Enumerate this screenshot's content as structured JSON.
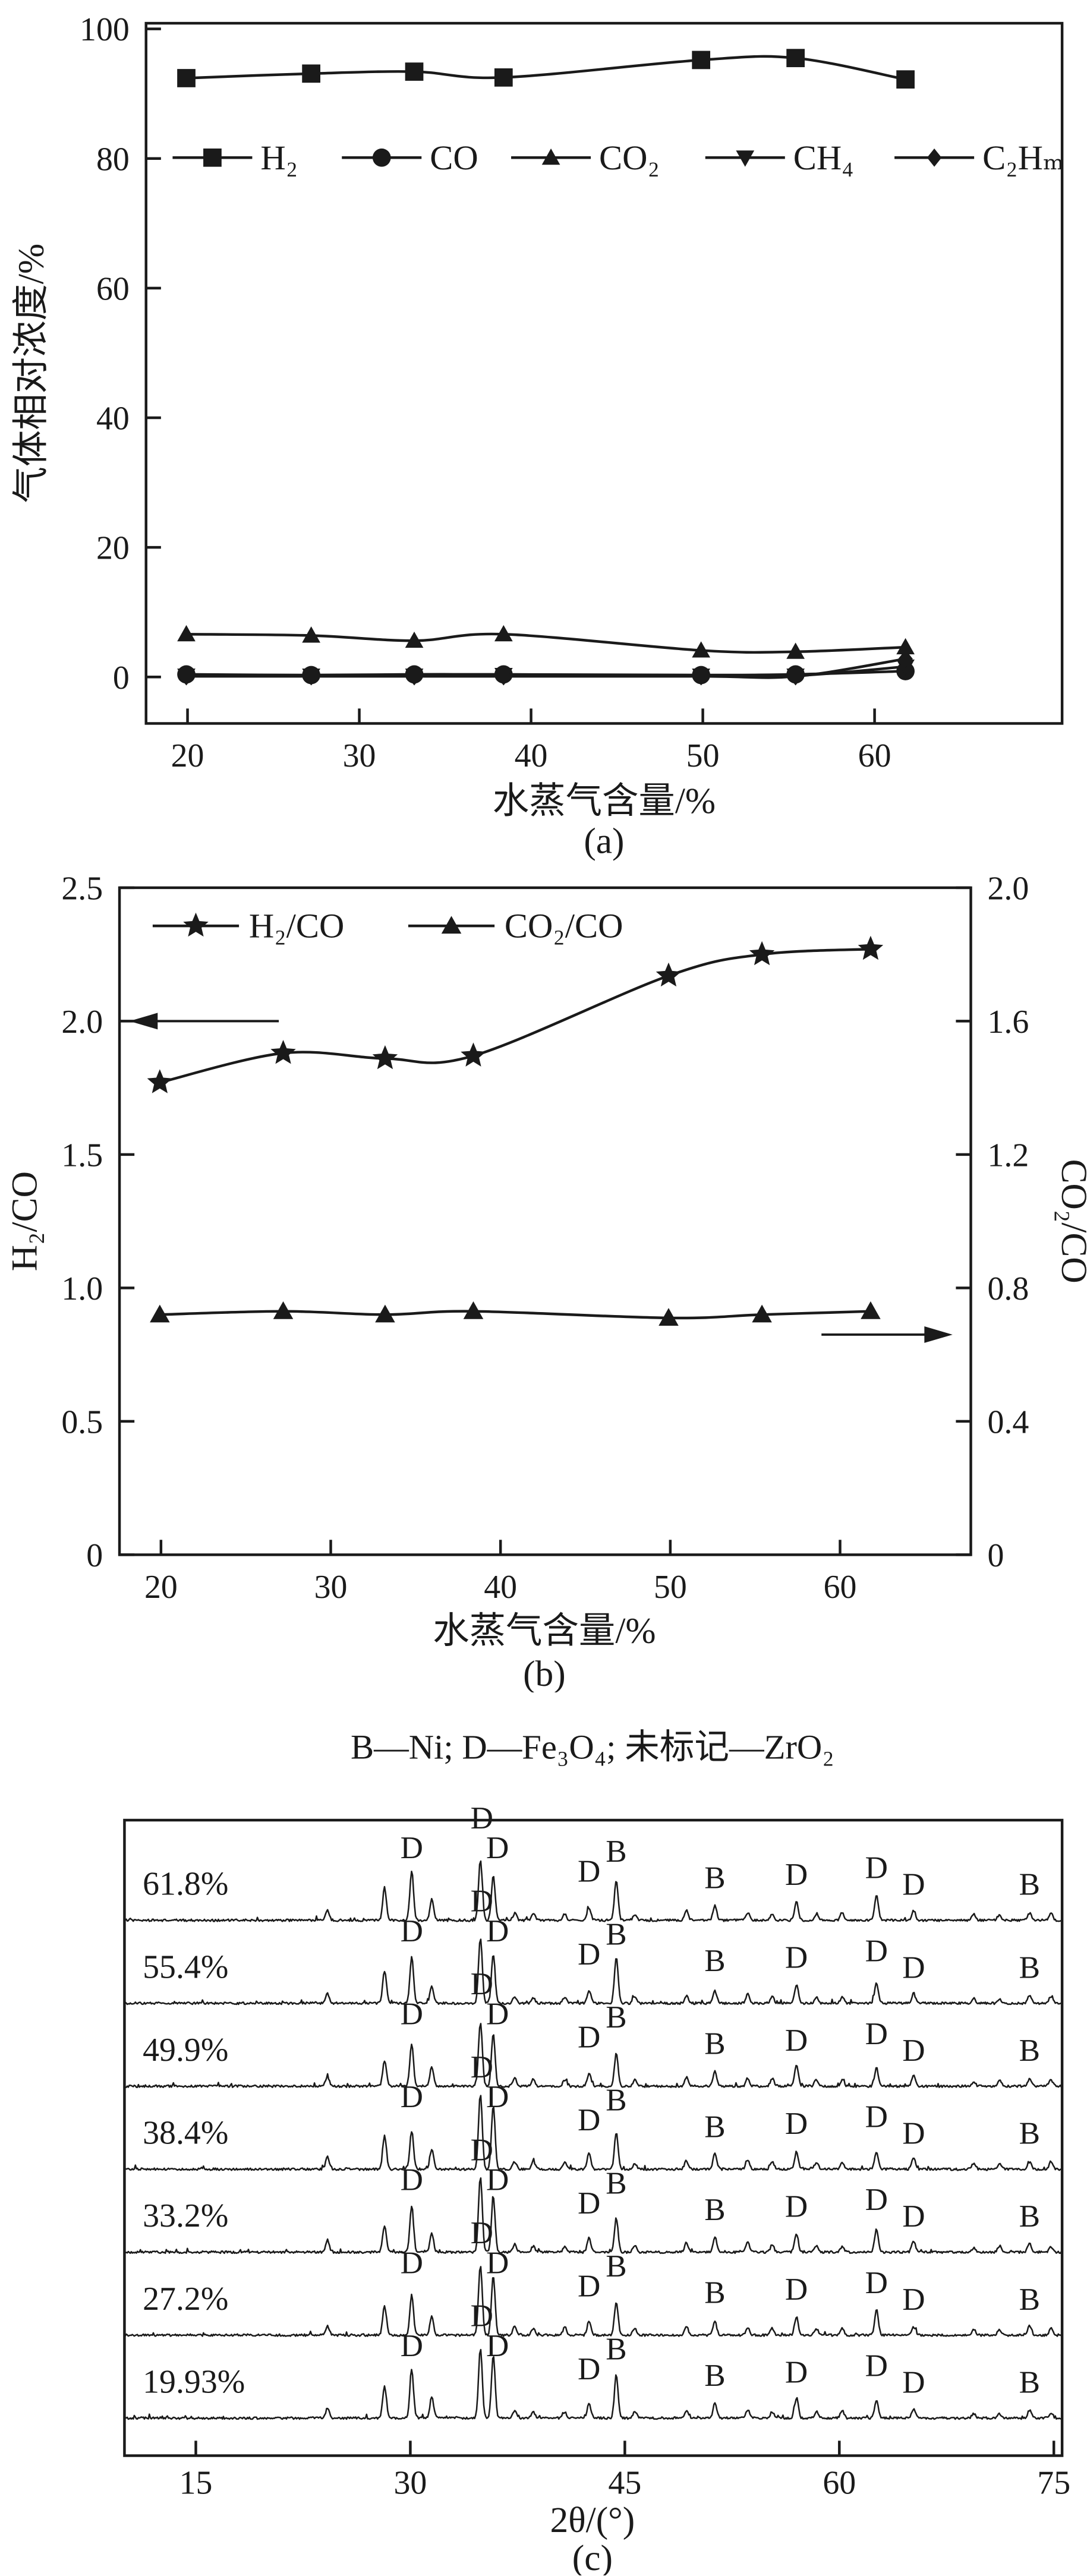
{
  "figure": {
    "background": "#ffffff",
    "ink": "#1a1a1a"
  },
  "chart_data": [
    {
      "id": "a",
      "type": "line",
      "xlabel": "水蒸气含量/%",
      "ylabel": "气体相对浓度/%",
      "caption": "(a)",
      "x": [
        19.93,
        27.2,
        33.2,
        38.4,
        49.9,
        55.4,
        61.8
      ],
      "xlim": [
        17.6,
        70.9
      ],
      "ylim": [
        -7,
        101
      ],
      "x_ticks": [
        20,
        30,
        40,
        50,
        60
      ],
      "y_ticks": [
        0,
        20,
        40,
        60,
        80,
        100
      ],
      "grid": false,
      "legend_position": "inside-top",
      "series": [
        {
          "name": "H₂",
          "marker": "square",
          "values": [
            92.4,
            93.1,
            93.4,
            92.5,
            95.2,
            95.5,
            92.2
          ]
        },
        {
          "name": "CO",
          "marker": "circle",
          "values": [
            0.4,
            0.3,
            0.4,
            0.4,
            0.3,
            0.4,
            0.9
          ]
        },
        {
          "name": "CO₂",
          "marker": "triangle-up",
          "values": [
            6.6,
            6.4,
            5.6,
            6.6,
            4.1,
            3.9,
            4.6
          ]
        },
        {
          "name": "CH₄",
          "marker": "triangle-down",
          "values": [
            0.2,
            0.2,
            0.2,
            0.3,
            0.2,
            0.2,
            1.6
          ]
        },
        {
          "name": "C₂Hₘ",
          "marker": "diamond",
          "values": [
            0.1,
            0.1,
            0.1,
            0.1,
            0.1,
            0.1,
            2.8
          ]
        }
      ]
    },
    {
      "id": "b",
      "type": "line-dual-axis",
      "xlabel": "水蒸气含量/%",
      "ylabel_left": "H₂/CO",
      "ylabel_right": "CO₂/CO",
      "caption": "(b)",
      "x": [
        19.93,
        27.2,
        33.2,
        38.4,
        49.9,
        55.4,
        61.8
      ],
      "xlim": [
        17.6,
        67.7
      ],
      "ylim_left": [
        0,
        2.5
      ],
      "ylim_right": [
        0,
        2.0
      ],
      "x_ticks": [
        20,
        30,
        40,
        50,
        60
      ],
      "y_ticks_left": [
        "0",
        "0.5",
        "1.0",
        "1.5",
        "2.0",
        "2.5"
      ],
      "y_ticks_right": [
        "0",
        "0.4",
        "0.8",
        "1.2",
        "1.6",
        "2.0"
      ],
      "grid": false,
      "legend_position": "inside-top-left",
      "series": [
        {
          "name": "H₂/CO",
          "marker": "star",
          "axis": "left",
          "values": [
            1.77,
            1.88,
            1.86,
            1.87,
            2.17,
            2.25,
            2.27
          ]
        },
        {
          "name": "CO₂/CO",
          "marker": "triangle-up",
          "axis": "right",
          "values": [
            0.72,
            0.73,
            0.72,
            0.73,
            0.71,
            0.72,
            0.73
          ]
        }
      ],
      "arrows": [
        {
          "direction": "left",
          "axis": "left",
          "value": 2.0
        },
        {
          "direction": "right",
          "axis": "right",
          "value": 0.66
        }
      ]
    },
    {
      "id": "c",
      "type": "xrd-stack",
      "title": "B—Ni; D—Fe₃O₄; 未标记—ZrO₂",
      "xlabel": "2θ/(°)",
      "caption": "(c)",
      "xlim": [
        10,
        75.6
      ],
      "x_ticks": [
        15,
        30,
        45,
        60,
        75
      ],
      "rows": [
        {
          "label": "61.8%"
        },
        {
          "label": "55.4%"
        },
        {
          "label": "49.9%"
        },
        {
          "label": "38.4%"
        },
        {
          "label": "33.2%"
        },
        {
          "label": "27.2%"
        },
        {
          "label": "19.93%"
        }
      ],
      "peaks": [
        [
          24.2,
          7
        ],
        [
          28.2,
          18
        ],
        [
          30.1,
          26
        ],
        [
          31.5,
          11
        ],
        [
          34.9,
          44
        ],
        [
          35.8,
          32
        ],
        [
          37.3,
          5
        ],
        [
          38.6,
          4
        ],
        [
          40.8,
          4
        ],
        [
          42.5,
          9
        ],
        [
          44.4,
          24
        ],
        [
          45.7,
          4
        ],
        [
          49.3,
          5
        ],
        [
          51.3,
          9
        ],
        [
          53.6,
          5
        ],
        [
          55.3,
          4
        ],
        [
          57.0,
          11
        ],
        [
          58.4,
          4
        ],
        [
          60.2,
          4
        ],
        [
          62.6,
          13
        ],
        [
          65.2,
          6
        ],
        [
          69.4,
          3
        ],
        [
          71.2,
          3
        ],
        [
          73.3,
          5
        ],
        [
          74.8,
          4
        ]
      ],
      "annotations": [
        {
          "x": 30.1,
          "text": "D",
          "dy": 38
        },
        {
          "x": 35.0,
          "text": "D",
          "dy": 56
        },
        {
          "x": 36.1,
          "text": "D",
          "dy": 38
        },
        {
          "x": 42.5,
          "text": "D",
          "dy": 24
        },
        {
          "x": 44.4,
          "text": "B",
          "dy": 36
        },
        {
          "x": 51.3,
          "text": "B",
          "dy": 20
        },
        {
          "x": 57.0,
          "text": "D",
          "dy": 22
        },
        {
          "x": 62.6,
          "text": "D",
          "dy": 26
        },
        {
          "x": 65.2,
          "text": "D",
          "dy": 16
        },
        {
          "x": 73.3,
          "text": "B",
          "dy": 16
        }
      ]
    }
  ]
}
